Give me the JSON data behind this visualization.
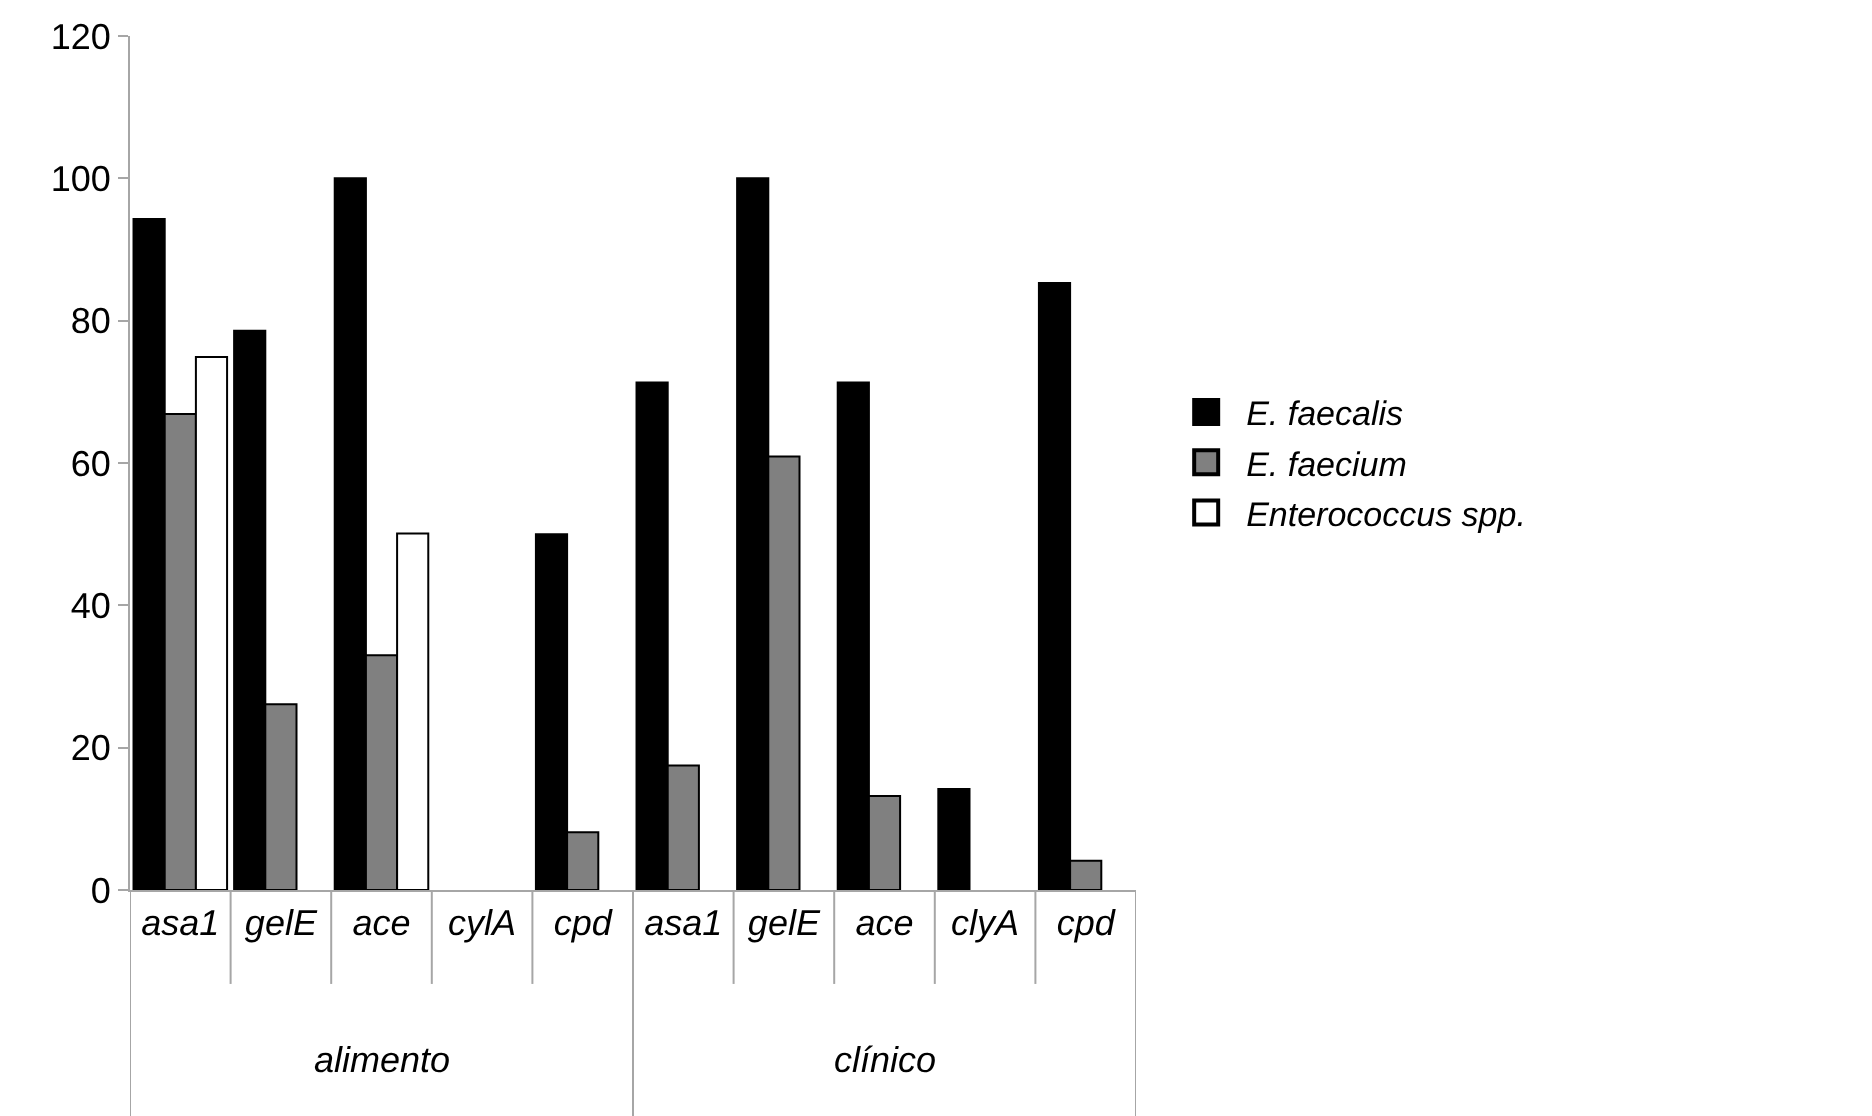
{
  "chart_data": {
    "type": "bar",
    "categories": [
      "asa1",
      "gelE",
      "ace",
      "cylA",
      "cpd",
      "asa1",
      "gelE",
      "ace",
      "clyA",
      "cpd"
    ],
    "series": [
      {
        "name": "E. faecalis",
        "color": "#000000",
        "values": [
          94.3,
          78.6,
          100,
          null,
          50,
          71.3,
          100,
          71.3,
          14.2,
          85.3
        ]
      },
      {
        "name": "E. faecium",
        "color": "#808080",
        "values": [
          66.9,
          26.1,
          33,
          null,
          8.1,
          17.5,
          60.9,
          13.2,
          null,
          4.1
        ]
      },
      {
        "name": "Enterococcus spp.",
        "color": "#ffffff",
        "values": [
          74.9,
          null,
          50.1,
          null,
          null,
          null,
          null,
          null,
          null,
          null
        ]
      }
    ],
    "annotations": [
      "alimento",
      "clínico"
    ],
    "ylim": [
      0,
      120
    ],
    "yticks": [
      0,
      20,
      40,
      60,
      80,
      100,
      120
    ],
    "grid": false,
    "legend": "right"
  }
}
